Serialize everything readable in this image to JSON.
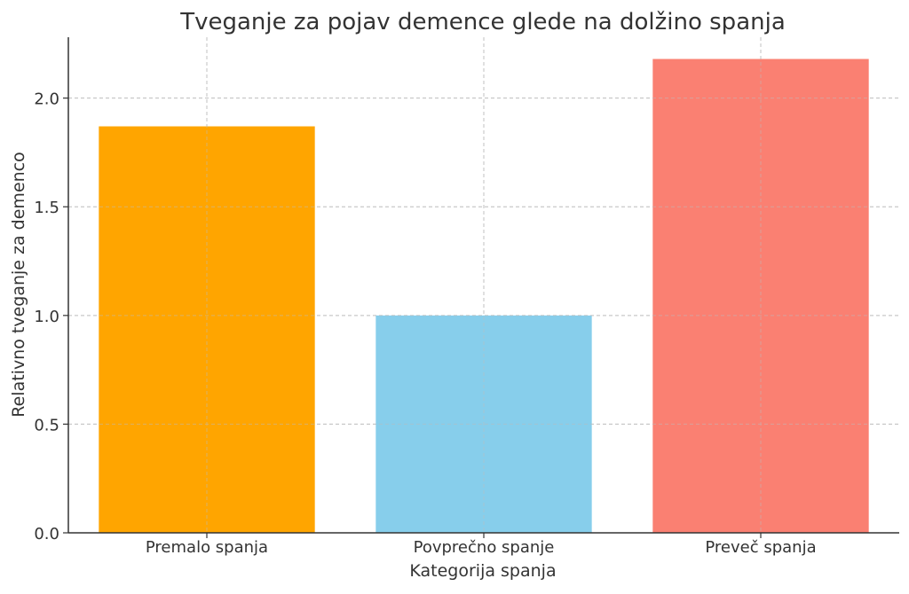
{
  "chart_data": {
    "type": "bar",
    "title": "Tveganje za pojav demence glede na dolžino spanja",
    "xlabel": "Kategorija spanja",
    "ylabel": "Relativno tveganje za demenco",
    "categories": [
      "Premalo spanja",
      "Povprečno spanje",
      "Preveč spanja"
    ],
    "values": [
      1.87,
      1.0,
      2.18
    ],
    "colors": [
      "#FFA500",
      "#87CEEB",
      "#FA8072"
    ],
    "ylim": [
      0,
      2.28
    ],
    "yticks": [
      "0.0",
      "0.5",
      "1.0",
      "1.5",
      "2.0"
    ],
    "grid": true,
    "legend": "none"
  }
}
